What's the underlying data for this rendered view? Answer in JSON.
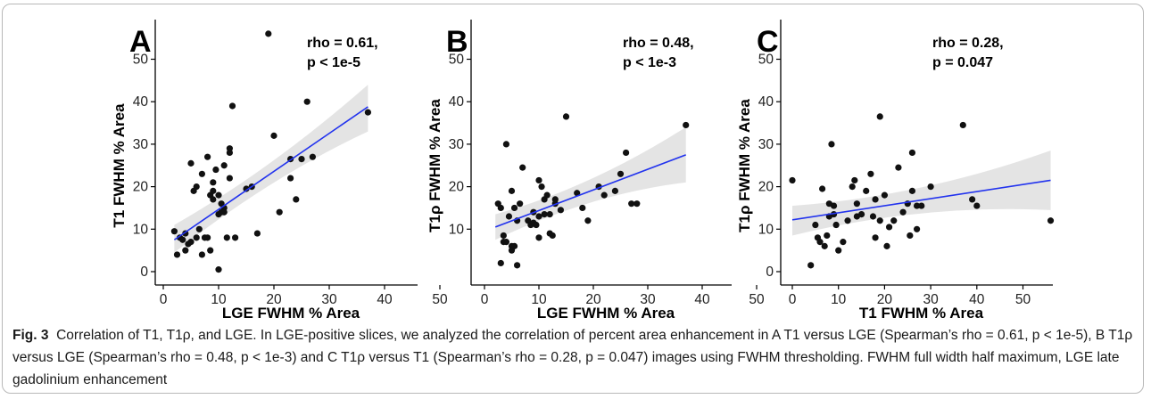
{
  "chart_data": [
    {
      "panel": "A",
      "type": "scatter",
      "xlabel": "LGE FWHM % Area",
      "ylabel": "T1 FWHM % Area",
      "xlim": [
        0,
        55
      ],
      "ylim": [
        0,
        56
      ],
      "xticks": [
        "0",
        "10",
        "20",
        "30",
        "40",
        "50"
      ],
      "yticks": [
        "0",
        "10",
        "20",
        "30",
        "40",
        "50"
      ],
      "annotation": [
        "rho = 0.61,",
        "p < 1e-5"
      ],
      "points": [
        [
          2,
          9.5
        ],
        [
          2.5,
          4
        ],
        [
          3,
          8
        ],
        [
          3.5,
          7.5
        ],
        [
          4,
          5
        ],
        [
          4,
          9
        ],
        [
          4.5,
          6.5
        ],
        [
          5,
          7
        ],
        [
          5,
          25.5
        ],
        [
          5.5,
          19
        ],
        [
          6,
          8
        ],
        [
          6,
          20
        ],
        [
          6.5,
          10
        ],
        [
          7,
          4
        ],
        [
          7,
          23
        ],
        [
          7.5,
          8
        ],
        [
          8,
          27
        ],
        [
          8,
          8
        ],
        [
          8.5,
          5
        ],
        [
          8.5,
          18
        ],
        [
          9,
          19
        ],
        [
          9,
          17
        ],
        [
          9,
          21
        ],
        [
          9.5,
          24
        ],
        [
          10,
          0.5
        ],
        [
          10,
          13.5
        ],
        [
          10,
          18
        ],
        [
          10.5,
          14
        ],
        [
          10.5,
          16
        ],
        [
          11,
          25
        ],
        [
          11,
          15
        ],
        [
          11,
          14
        ],
        [
          11.5,
          8
        ],
        [
          12,
          28
        ],
        [
          12,
          22
        ],
        [
          12,
          29
        ],
        [
          12.5,
          39
        ],
        [
          13,
          8
        ],
        [
          15,
          19.5
        ],
        [
          16,
          20
        ],
        [
          17,
          9
        ],
        [
          19,
          56
        ],
        [
          20,
          32
        ],
        [
          21,
          14
        ],
        [
          23,
          26.5
        ],
        [
          23,
          22
        ],
        [
          24,
          17
        ],
        [
          25,
          26.5
        ],
        [
          26,
          40
        ],
        [
          27,
          27
        ],
        [
          37,
          37.5
        ]
      ],
      "fit": {
        "x": [
          2,
          37
        ],
        "y": [
          7.5,
          38.8
        ],
        "ci_lower_start": 4.5,
        "ci_upper_start": 11,
        "ci_lower_end": 33,
        "ci_upper_end": 44
      }
    },
    {
      "panel": "B",
      "type": "scatter",
      "xlabel": "LGE FWHM % Area",
      "ylabel": "T1ρ FWHM % Area",
      "xlim": [
        0,
        55
      ],
      "ylim": [
        0,
        56
      ],
      "xticks": [
        "0",
        "10",
        "20",
        "30",
        "40",
        "50"
      ],
      "yticks": [
        "10",
        "20",
        "30",
        "40",
        "50"
      ],
      "annotation": [
        "rho = 0.48,",
        "p < 1e-3"
      ],
      "points": [
        [
          2.5,
          16
        ],
        [
          3,
          15
        ],
        [
          3,
          2
        ],
        [
          3.5,
          7
        ],
        [
          3.5,
          8.5
        ],
        [
          4,
          7
        ],
        [
          4,
          30
        ],
        [
          4.5,
          13
        ],
        [
          5,
          19
        ],
        [
          5,
          6
        ],
        [
          5,
          5
        ],
        [
          5.5,
          15
        ],
        [
          5.5,
          6
        ],
        [
          6,
          1.5
        ],
        [
          6,
          12
        ],
        [
          6.5,
          16
        ],
        [
          7,
          24.5
        ],
        [
          8,
          12
        ],
        [
          8.5,
          11
        ],
        [
          9,
          14
        ],
        [
          9,
          11.5
        ],
        [
          9.5,
          11
        ],
        [
          10,
          21.5
        ],
        [
          10,
          13
        ],
        [
          10,
          8
        ],
        [
          10.5,
          20
        ],
        [
          11,
          17
        ],
        [
          11,
          13.5
        ],
        [
          11.5,
          18
        ],
        [
          12,
          9
        ],
        [
          12,
          13.5
        ],
        [
          12.5,
          8.5
        ],
        [
          13,
          16
        ],
        [
          13,
          17
        ],
        [
          14,
          14.5
        ],
        [
          15,
          36.5
        ],
        [
          17,
          18.5
        ],
        [
          18,
          15
        ],
        [
          19,
          12
        ],
        [
          21,
          20
        ],
        [
          22,
          18
        ],
        [
          24,
          19
        ],
        [
          25,
          23
        ],
        [
          26,
          28
        ],
        [
          27,
          16
        ],
        [
          28,
          16
        ],
        [
          37,
          34.5
        ]
      ],
      "fit": {
        "x": [
          2,
          37
        ],
        "y": [
          10.5,
          27.5
        ],
        "ci_lower_start": 7.5,
        "ci_upper_start": 13.5,
        "ci_lower_end": 21,
        "ci_upper_end": 34
      }
    },
    {
      "panel": "C",
      "type": "scatter",
      "xlabel": "T1 FWHM % Area",
      "ylabel": "T1ρ FWHM % Area",
      "xlim": [
        -2,
        60
      ],
      "ylim": [
        0,
        56
      ],
      "xticks": [
        "0",
        "10",
        "20",
        "30",
        "40",
        "50"
      ],
      "yticks": [
        "0",
        "10",
        "20",
        "30",
        "40",
        "50"
      ],
      "annotation": [
        "rho = 0.28,",
        "p = 0.047"
      ],
      "points": [
        [
          0,
          21.5
        ],
        [
          4,
          1.5
        ],
        [
          5,
          11
        ],
        [
          5.5,
          8
        ],
        [
          6,
          7
        ],
        [
          6.5,
          19.5
        ],
        [
          7,
          6
        ],
        [
          7.5,
          8.5
        ],
        [
          8,
          16
        ],
        [
          8,
          13
        ],
        [
          8.5,
          30
        ],
        [
          9,
          15.5
        ],
        [
          9,
          13.5
        ],
        [
          9.5,
          11
        ],
        [
          10,
          5
        ],
        [
          11,
          7
        ],
        [
          12,
          12
        ],
        [
          13,
          20
        ],
        [
          13.5,
          21.5
        ],
        [
          14,
          16
        ],
        [
          14,
          13
        ],
        [
          15,
          13.5
        ],
        [
          16,
          19
        ],
        [
          17,
          23
        ],
        [
          17.5,
          13
        ],
        [
          18,
          8
        ],
        [
          18,
          17
        ],
        [
          19,
          36.5
        ],
        [
          19,
          12
        ],
        [
          20,
          18
        ],
        [
          20.5,
          6
        ],
        [
          21,
          10.5
        ],
        [
          22,
          12
        ],
        [
          23,
          24.5
        ],
        [
          24,
          14
        ],
        [
          25,
          16
        ],
        [
          25.5,
          8.5
        ],
        [
          26,
          19
        ],
        [
          26,
          28
        ],
        [
          27,
          15.5
        ],
        [
          27,
          10
        ],
        [
          28,
          15.5
        ],
        [
          30,
          20
        ],
        [
          37,
          34.5
        ],
        [
          39,
          17
        ],
        [
          40,
          15.5
        ],
        [
          56,
          12
        ]
      ],
      "fit": {
        "x": [
          0,
          56
        ],
        "y": [
          12.2,
          21.5
        ],
        "ci_lower_start": 8.5,
        "ci_upper_start": 15.5,
        "ci_lower_end": 14.5,
        "ci_upper_end": 28.5
      }
    }
  ],
  "caption": {
    "label": "Fig. 3",
    "text": "Correlation of T1, T1ρ, and LGE. In LGE-positive slices, we analyzed the correlation of percent area enhancement in A T1 versus LGE (Spearman’s rho = 0.61, p < 1e-5), B T1ρ versus LGE (Spearman’s rho = 0.48, p < 1e-3) and C T1ρ versus T1 (Spearman’s rho = 0.28, p = 0.047) images using FWHM thresholding. FWHM full width half maximum, LGE late gadolinium enhancement"
  }
}
